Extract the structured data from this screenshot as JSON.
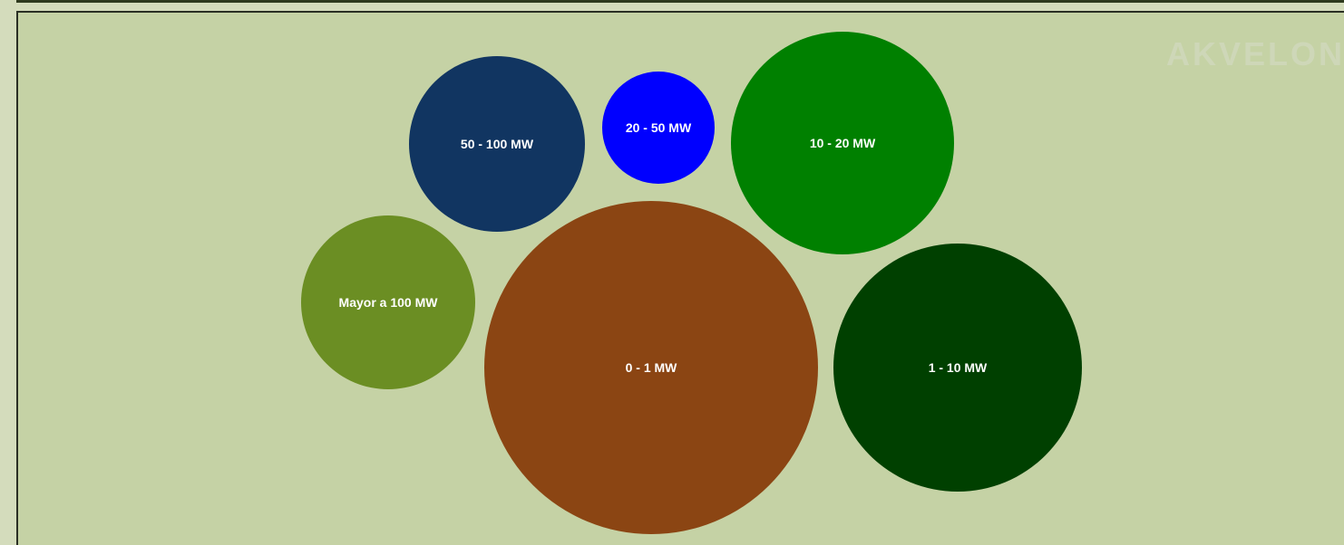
{
  "watermark": "AKVELON",
  "chart_data": {
    "type": "bubble",
    "title": "",
    "legend": "none",
    "series": [
      {
        "label": "Mayor a 100 MW",
        "color": "#6b8e23",
        "size_rank": 5
      },
      {
        "label": "50 - 100 MW",
        "color": "#113561",
        "size_rank": 4
      },
      {
        "label": "20 - 50 MW",
        "color": "#0000ff",
        "size_rank": 7
      },
      {
        "label": "10 - 20 MW",
        "color": "#008000",
        "size_rank": 3
      },
      {
        "label": "0 - 1 MW",
        "color": "#8b4513",
        "size_rank": 1
      },
      {
        "label": "1 - 10 MW",
        "color": "#004000",
        "size_rank": 2
      }
    ]
  }
}
